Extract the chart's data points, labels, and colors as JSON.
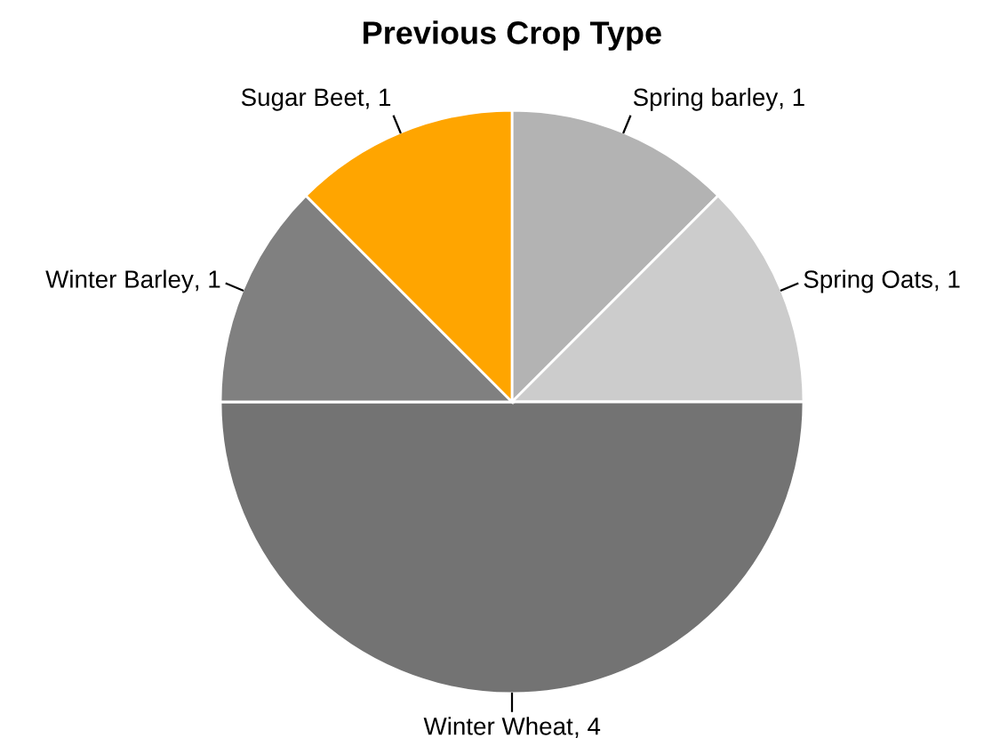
{
  "chart_data": {
    "type": "pie",
    "title": "Previous Crop Type",
    "categories": [
      "Spring barley",
      "Spring Oats",
      "Winter Wheat",
      "Winter Barley",
      "Sugar Beet"
    ],
    "values": [
      1,
      1,
      4,
      1,
      1
    ],
    "colors": [
      "#b3b3b3",
      "#cccccc",
      "#737373",
      "#808080",
      "#ffa500"
    ],
    "value_labels": [
      ", 1",
      ", 1",
      ", 4",
      ", 1",
      ", 1"
    ],
    "legend": false
  }
}
